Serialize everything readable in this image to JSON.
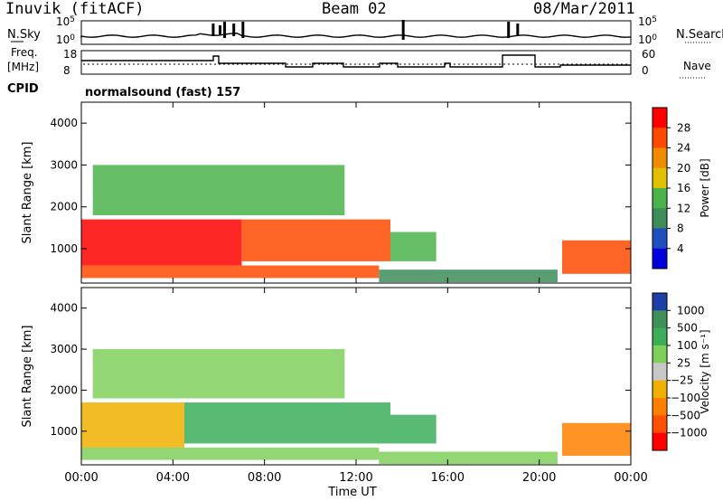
{
  "header": {
    "station": "Inuvik (fitACF)",
    "beam": "Beam 02",
    "date": "08/Mar/2011"
  },
  "top_panels": {
    "sky_label": "N.Sky",
    "search_label": "N.Search",
    "search_ticks": [
      "10^5",
      "10^0"
    ],
    "sky_ticks": [
      "10^5",
      "10^0"
    ],
    "freq_label_1": "Freq.",
    "freq_label_2": "[MHz]",
    "freq_ticks": [
      "18",
      "8"
    ],
    "nave_label": "Nave",
    "nave_ticks": [
      "60",
      "0"
    ],
    "cpid_label": "CPID",
    "cpid_text": "normalsound (fast) 157"
  },
  "chart_data": [
    {
      "type": "heatmap",
      "title": "",
      "xlabel": "Time UT",
      "ylabel": "Slant Range [km]",
      "x_ticks": [
        "00:00",
        "04:00",
        "08:00",
        "12:00",
        "16:00",
        "20:00",
        "00:00"
      ],
      "y_ticks": [
        "1000",
        "2000",
        "3000",
        "4000"
      ],
      "ylim": [
        180,
        4500
      ],
      "colorbar": {
        "label": "Power [dB]",
        "ticks": [
          "4",
          "8",
          "12",
          "16",
          "20",
          "24",
          "28"
        ],
        "colors": [
          "#0000dd",
          "#1f4fbf",
          "#3d8c5a",
          "#4bb34b",
          "#e0c000",
          "#f08a00",
          "#ff4a00",
          "#ff0000"
        ]
      },
      "regions": [
        {
          "t": [
            0.0,
            7.0
          ],
          "r": [
            600,
            1700
          ],
          "value": 28
        },
        {
          "t": [
            7.0,
            13.5
          ],
          "r": [
            700,
            1700
          ],
          "value": 26
        },
        {
          "t": [
            13.5,
            15.5
          ],
          "r": [
            700,
            1400
          ],
          "value": 14
        },
        {
          "t": [
            0.0,
            13.0
          ],
          "r": [
            300,
            600
          ],
          "value": 24
        },
        {
          "t": [
            13.0,
            20.8
          ],
          "r": [
            200,
            500
          ],
          "value": 10
        },
        {
          "t": [
            21.0,
            24.0
          ],
          "r": [
            400,
            1200
          ],
          "value": 27
        },
        {
          "t": [
            0.5,
            11.5
          ],
          "r": [
            1800,
            3000
          ],
          "value": 12
        }
      ]
    },
    {
      "type": "heatmap",
      "title": "",
      "xlabel": "Time UT",
      "ylabel": "Slant Range [km]",
      "x_ticks": [
        "00:00",
        "04:00",
        "08:00",
        "12:00",
        "16:00",
        "20:00",
        "00:00"
      ],
      "y_ticks": [
        "1000",
        "2000",
        "3000",
        "4000"
      ],
      "ylim": [
        180,
        4500
      ],
      "colorbar": {
        "label": "Velocity [m s^-1]",
        "ticks": [
          "1000",
          "500",
          "100",
          "25",
          "-25",
          "-100",
          "-500",
          "-1000"
        ],
        "colors": [
          "#1c3fa8",
          "#3f8f5a",
          "#3cae5a",
          "#7fd05a",
          "#c8c8c8",
          "#f0b000",
          "#ff8000",
          "#ff5000",
          "#ff0000"
        ]
      },
      "regions": [
        {
          "t": [
            0.0,
            4.5
          ],
          "r": [
            600,
            1700
          ],
          "value": -100
        },
        {
          "t": [
            4.5,
            13.5
          ],
          "r": [
            700,
            1700
          ],
          "value": 300
        },
        {
          "t": [
            13.5,
            15.5
          ],
          "r": [
            700,
            1400
          ],
          "value": 150
        },
        {
          "t": [
            0.0,
            13.0
          ],
          "r": [
            300,
            600
          ],
          "value": 80
        },
        {
          "t": [
            13.0,
            20.8
          ],
          "r": [
            200,
            500
          ],
          "value": 60
        },
        {
          "t": [
            21.0,
            24.0
          ],
          "r": [
            400,
            1200
          ],
          "value": -200
        },
        {
          "t": [
            0.5,
            11.5
          ],
          "r": [
            1800,
            3000
          ],
          "value": 60
        }
      ]
    }
  ]
}
